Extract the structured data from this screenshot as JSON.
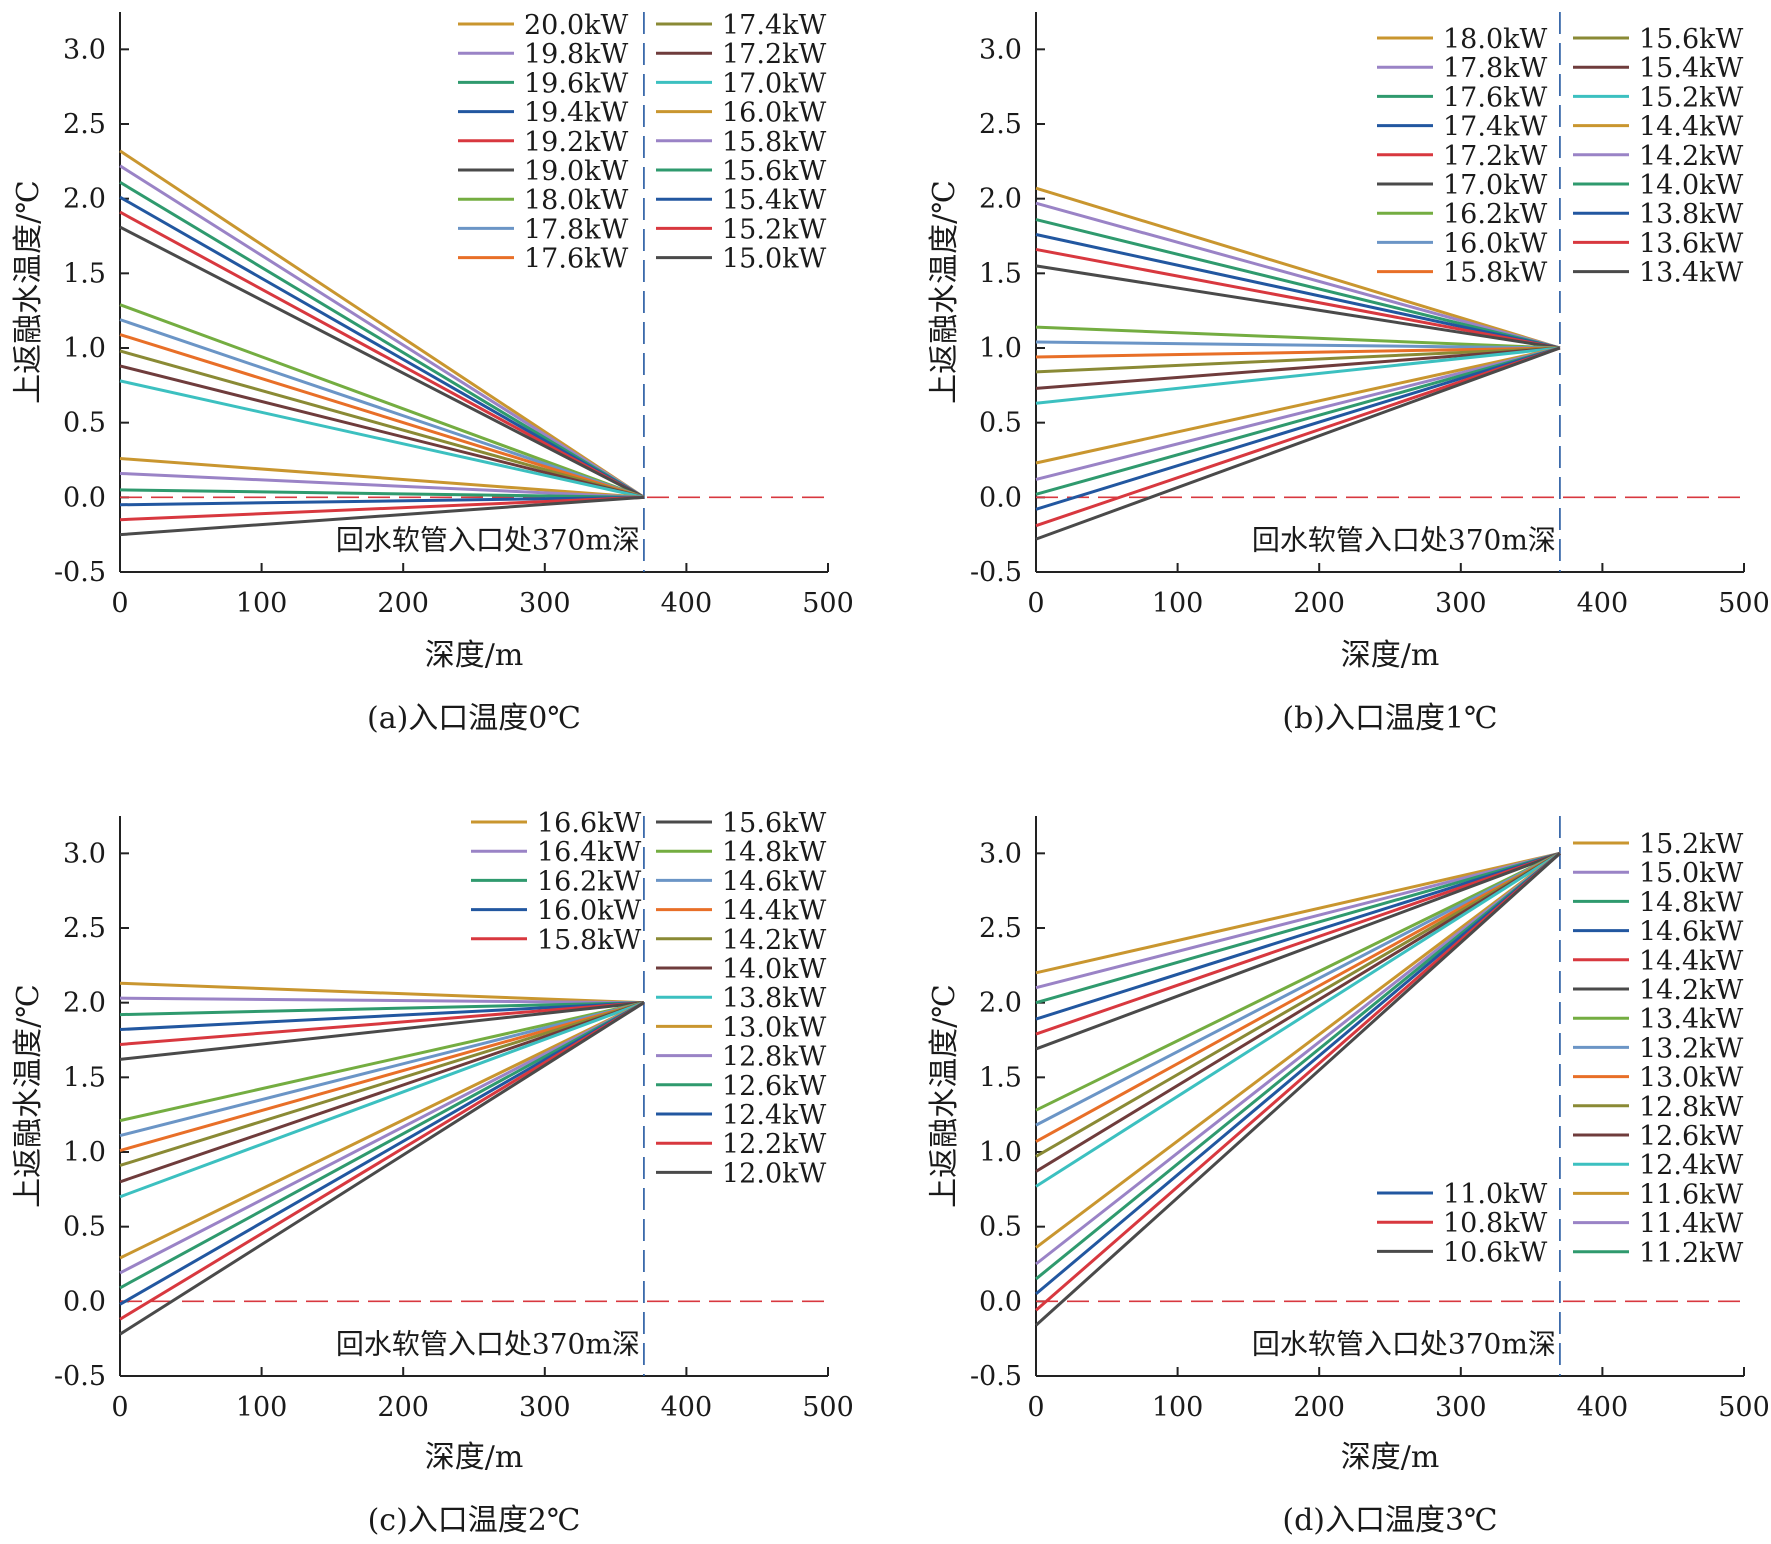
{
  "colors": {
    "gold": "#c9962f",
    "purple": "#9a83c6",
    "teal": "#2f9a6e",
    "blue": "#2257a0",
    "red": "#d8383f",
    "dark": "#4a4a4a",
    "green": "#74ad41",
    "lightblue": "#6b95c6",
    "orange": "#e86f28",
    "olive": "#8a8a35",
    "brown": "#6f3c3c",
    "cyan": "#3cc0c0",
    "ref_red": "#d8383f",
    "ref_blue": "#2257a0"
  },
  "chart_data": [
    {
      "type": "line",
      "caption": "(a)入口温度0℃",
      "xlabel": "深度/m",
      "ylabel": "上返融水温度/℃",
      "xlim": [
        0,
        500
      ],
      "ylim": [
        -0.5,
        3.25
      ],
      "xticks": [
        "0",
        "100",
        "200",
        "300",
        "400",
        "500"
      ],
      "yticks": [
        "-0.5",
        "0.0",
        "0.5",
        "1.0",
        "1.5",
        "2.0",
        "2.5",
        "3.0"
      ],
      "annotation": "回水软管入口处370m深",
      "ref_depth": 370,
      "ref_temp": 0.0,
      "end_temp": 0.0,
      "legend_columns": 2,
      "series": [
        {
          "name": "20.0kW",
          "color": "gold",
          "start": 2.32
        },
        {
          "name": "19.8kW",
          "color": "purple",
          "start": 2.22
        },
        {
          "name": "19.6kW",
          "color": "teal",
          "start": 2.11
        },
        {
          "name": "19.4kW",
          "color": "blue",
          "start": 2.01
        },
        {
          "name": "19.2kW",
          "color": "red",
          "start": 1.91
        },
        {
          "name": "19.0kW",
          "color": "dark",
          "start": 1.81
        },
        {
          "name": "18.0kW",
          "color": "green",
          "start": 1.29
        },
        {
          "name": "17.8kW",
          "color": "lightblue",
          "start": 1.19
        },
        {
          "name": "17.6kW",
          "color": "orange",
          "start": 1.09
        },
        {
          "name": "17.4kW",
          "color": "olive",
          "start": 0.98
        },
        {
          "name": "17.2kW",
          "color": "brown",
          "start": 0.88
        },
        {
          "name": "17.0kW",
          "color": "cyan",
          "start": 0.78
        },
        {
          "name": "16.0kW",
          "color": "gold",
          "start": 0.26
        },
        {
          "name": "15.8kW",
          "color": "purple",
          "start": 0.16
        },
        {
          "name": "15.6kW",
          "color": "teal",
          "start": 0.05
        },
        {
          "name": "15.4kW",
          "color": "blue",
          "start": -0.05
        },
        {
          "name": "15.2kW",
          "color": "red",
          "start": -0.15
        },
        {
          "name": "15.0kW",
          "color": "dark",
          "start": -0.25
        }
      ]
    },
    {
      "type": "line",
      "caption": "(b)入口温度1℃",
      "xlabel": "深度/m",
      "ylabel": "上返融水温度/℃",
      "xlim": [
        0,
        500
      ],
      "ylim": [
        -0.5,
        3.25
      ],
      "xticks": [
        "0",
        "100",
        "200",
        "300",
        "400",
        "500"
      ],
      "yticks": [
        "-0.5",
        "0.0",
        "0.5",
        "1.0",
        "1.5",
        "2.0",
        "2.5",
        "3.0"
      ],
      "annotation": "回水软管入口处370m深",
      "ref_depth": 370,
      "ref_temp": 0.0,
      "end_temp": 1.0,
      "legend_columns": 2,
      "series": [
        {
          "name": "18.0kW",
          "color": "gold",
          "start": 2.07
        },
        {
          "name": "17.8kW",
          "color": "purple",
          "start": 1.97
        },
        {
          "name": "17.6kW",
          "color": "teal",
          "start": 1.86
        },
        {
          "name": "17.4kW",
          "color": "blue",
          "start": 1.76
        },
        {
          "name": "17.2kW",
          "color": "red",
          "start": 1.66
        },
        {
          "name": "17.0kW",
          "color": "dark",
          "start": 1.55
        },
        {
          "name": "16.2kW",
          "color": "green",
          "start": 1.14
        },
        {
          "name": "16.0kW",
          "color": "lightblue",
          "start": 1.04
        },
        {
          "name": "15.8kW",
          "color": "orange",
          "start": 0.94
        },
        {
          "name": "15.6kW",
          "color": "olive",
          "start": 0.84
        },
        {
          "name": "15.4kW",
          "color": "brown",
          "start": 0.73
        },
        {
          "name": "15.2kW",
          "color": "cyan",
          "start": 0.63
        },
        {
          "name": "14.4kW",
          "color": "gold",
          "start": 0.23
        },
        {
          "name": "14.2kW",
          "color": "purple",
          "start": 0.12
        },
        {
          "name": "14.0kW",
          "color": "teal",
          "start": 0.02
        },
        {
          "name": "13.8kW",
          "color": "blue",
          "start": -0.08
        },
        {
          "name": "13.6kW",
          "color": "red",
          "start": -0.19
        },
        {
          "name": "13.4kW",
          "color": "dark",
          "start": -0.28
        }
      ]
    },
    {
      "type": "line",
      "caption": "(c)入口温度2℃",
      "xlabel": "深度/m",
      "ylabel": "上返融水温度/℃",
      "xlim": [
        0,
        500
      ],
      "ylim": [
        -0.5,
        3.25
      ],
      "xticks": [
        "0",
        "100",
        "200",
        "300",
        "400",
        "500"
      ],
      "yticks": [
        "-0.5",
        "0.0",
        "0.5",
        "1.0",
        "1.5",
        "2.0",
        "2.5",
        "3.0"
      ],
      "annotation": "回水软管入口处370m深",
      "ref_depth": 370,
      "ref_temp": 0.0,
      "end_temp": 2.0,
      "legend_columns": 2,
      "series": [
        {
          "name": "16.6kW",
          "color": "gold",
          "start": 2.13
        },
        {
          "name": "16.4kW",
          "color": "purple",
          "start": 2.03
        },
        {
          "name": "16.2kW",
          "color": "teal",
          "start": 1.92
        },
        {
          "name": "16.0kW",
          "color": "blue",
          "start": 1.82
        },
        {
          "name": "15.8kW",
          "color": "red",
          "start": 1.72
        },
        {
          "name": "15.6kW",
          "color": "dark",
          "start": 1.62
        },
        {
          "name": "14.8kW",
          "color": "green",
          "start": 1.21
        },
        {
          "name": "14.6kW",
          "color": "lightblue",
          "start": 1.11
        },
        {
          "name": "14.4kW",
          "color": "orange",
          "start": 1.01
        },
        {
          "name": "14.2kW",
          "color": "olive",
          "start": 0.91
        },
        {
          "name": "14.0kW",
          "color": "brown",
          "start": 0.8
        },
        {
          "name": "13.8kW",
          "color": "cyan",
          "start": 0.7
        },
        {
          "name": "13.0kW",
          "color": "gold",
          "start": 0.29
        },
        {
          "name": "12.8kW",
          "color": "purple",
          "start": 0.19
        },
        {
          "name": "12.6kW",
          "color": "teal",
          "start": 0.09
        },
        {
          "name": "12.4kW",
          "color": "blue",
          "start": -0.02
        },
        {
          "name": "12.2kW",
          "color": "red",
          "start": -0.12
        },
        {
          "name": "12.0kW",
          "color": "dark",
          "start": -0.22
        }
      ]
    },
    {
      "type": "line",
      "caption": "(d)入口温度3℃",
      "xlabel": "深度/m",
      "ylabel": "上返融水温度/℃",
      "xlim": [
        0,
        500
      ],
      "ylim": [
        -0.5,
        3.25
      ],
      "xticks": [
        "0",
        "100",
        "200",
        "300",
        "400",
        "500"
      ],
      "yticks": [
        "-0.5",
        "0.0",
        "0.5",
        "1.0",
        "1.5",
        "2.0",
        "2.5",
        "3.0"
      ],
      "annotation": "回水软管入口处370m深",
      "ref_depth": 370,
      "ref_temp": 0.0,
      "end_temp": 3.0,
      "legend_columns": 2,
      "legend_split": true,
      "series": [
        {
          "name": "15.2kW",
          "color": "gold",
          "start": 2.2
        },
        {
          "name": "15.0kW",
          "color": "purple",
          "start": 2.1
        },
        {
          "name": "14.8kW",
          "color": "teal",
          "start": 2.0
        },
        {
          "name": "14.6kW",
          "color": "blue",
          "start": 1.89
        },
        {
          "name": "14.4kW",
          "color": "red",
          "start": 1.79
        },
        {
          "name": "14.2kW",
          "color": "dark",
          "start": 1.69
        },
        {
          "name": "13.4kW",
          "color": "green",
          "start": 1.28
        },
        {
          "name": "13.2kW",
          "color": "lightblue",
          "start": 1.18
        },
        {
          "name": "13.0kW",
          "color": "orange",
          "start": 1.07
        },
        {
          "name": "12.8kW",
          "color": "olive",
          "start": 0.97
        },
        {
          "name": "12.6kW",
          "color": "brown",
          "start": 0.87
        },
        {
          "name": "12.4kW",
          "color": "cyan",
          "start": 0.77
        },
        {
          "name": "11.6kW",
          "color": "gold",
          "start": 0.36
        },
        {
          "name": "11.4kW",
          "color": "purple",
          "start": 0.25
        },
        {
          "name": "11.2kW",
          "color": "teal",
          "start": 0.15
        },
        {
          "name": "11.0kW",
          "color": "blue",
          "start": 0.05
        },
        {
          "name": "10.8kW",
          "color": "red",
          "start": -0.06
        },
        {
          "name": "10.6kW",
          "color": "dark",
          "start": -0.16
        }
      ]
    }
  ]
}
